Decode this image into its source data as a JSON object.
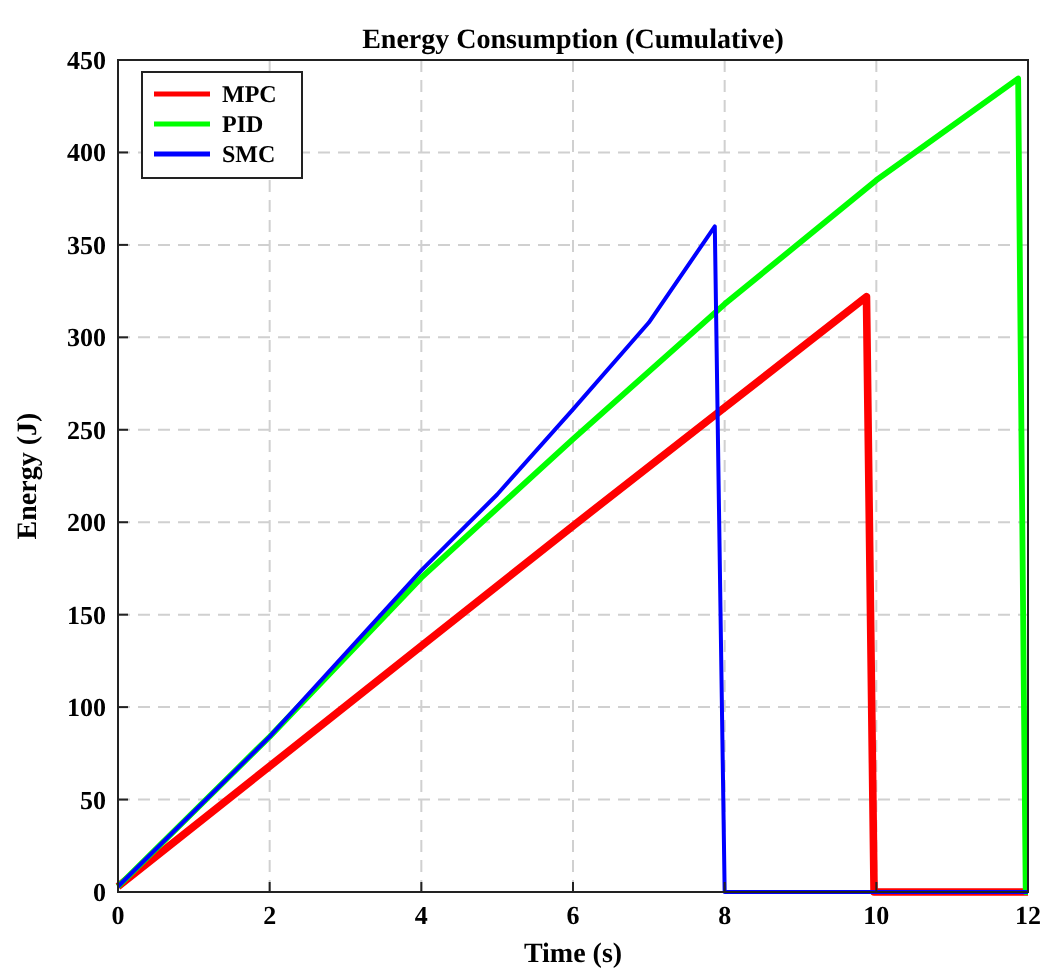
{
  "chart_data": {
    "type": "line",
    "title": "Energy Consumption (Cumulative)",
    "xlabel": "Time (s)",
    "ylabel": "Energy (J)",
    "xlim": [
      0,
      12
    ],
    "xticks": [
      0,
      2,
      4,
      6,
      8,
      10,
      12
    ],
    "ylim": [
      0,
      450
    ],
    "yticks": [
      0,
      50,
      100,
      150,
      200,
      250,
      300,
      350,
      400,
      450
    ],
    "grid": true,
    "legend": "top left",
    "line_style": "solid",
    "marker": "none",
    "series": [
      {
        "name": "MPC",
        "color": "#ff0000",
        "x": [
          0,
          2,
          4,
          6,
          8,
          9.87,
          9.97,
          12
        ],
        "values": [
          3,
          68,
          133,
          198,
          262,
          322,
          0,
          0
        ]
      },
      {
        "name": "PID",
        "color": "#00ff00",
        "x": [
          0,
          2,
          4,
          6,
          8,
          10,
          11.87,
          11.97,
          12
        ],
        "values": [
          3,
          84,
          170,
          245,
          318,
          385,
          440,
          0,
          0
        ]
      },
      {
        "name": "SMC",
        "color": "#0000ff",
        "x": [
          0,
          2,
          4,
          5,
          6,
          7,
          7.87,
          8,
          12
        ],
        "values": [
          3,
          84,
          174,
          215,
          261,
          308,
          360,
          0,
          0
        ]
      }
    ]
  }
}
